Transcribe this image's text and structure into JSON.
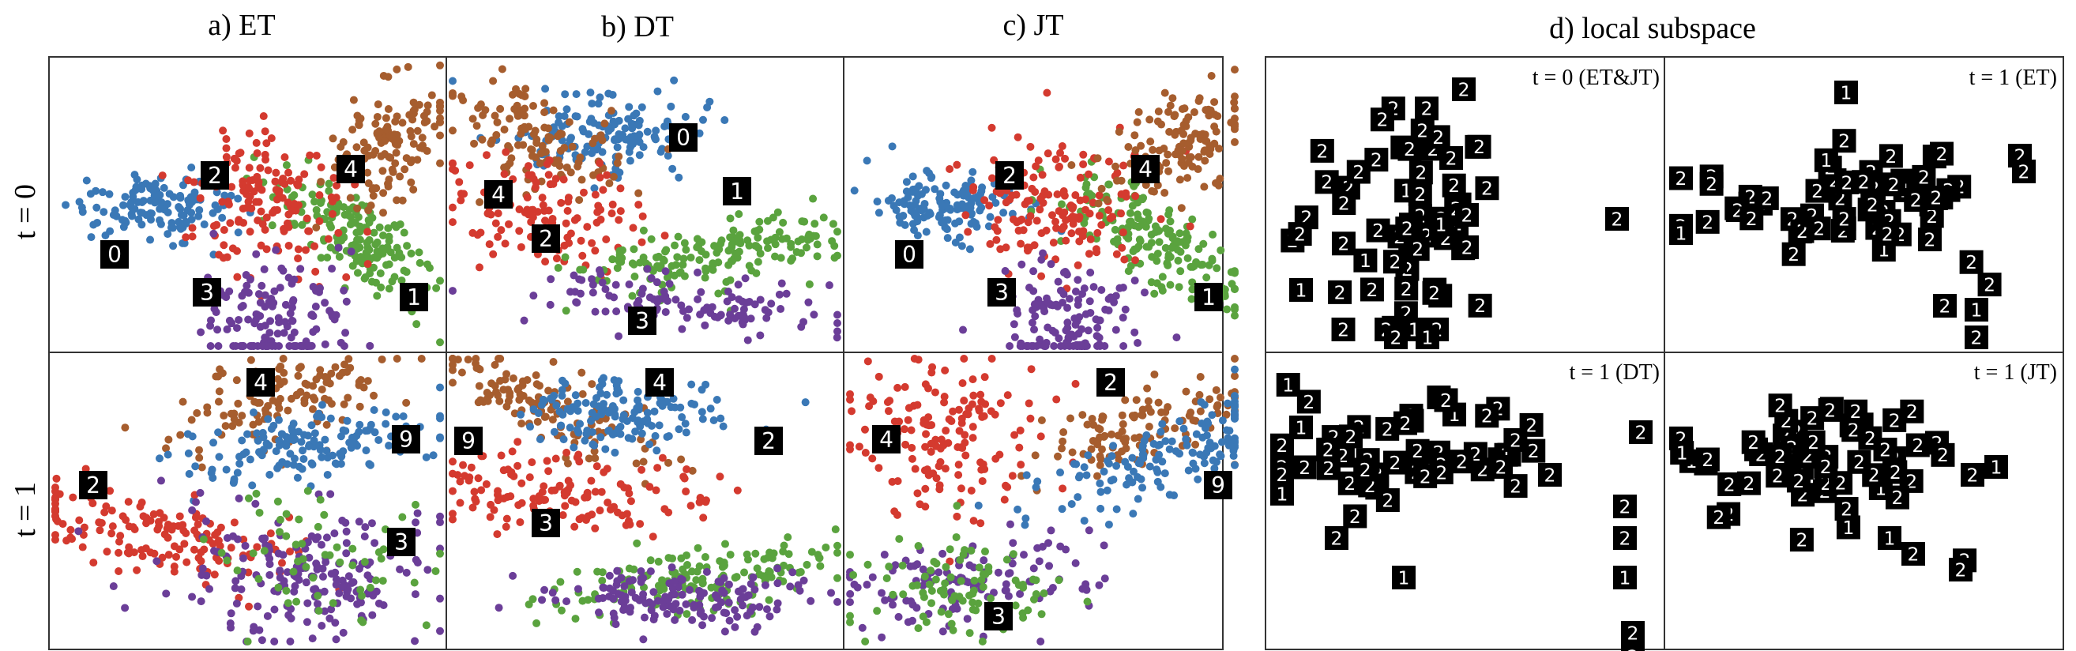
{
  "column_titles": [
    "a) ET",
    "b) DT",
    "c) JT"
  ],
  "local_title": "d) local subspace",
  "row_labels": [
    "t = 0",
    "t = 1"
  ],
  "colors": {
    "digit_0": "#3a78b6",
    "digit_1": "#5aa33e",
    "digit_2": "#d43a2f",
    "digit_3": "#6b3e98",
    "digit_4": "#a65d2e",
    "digit_9": "#3a78b6",
    "frame": "#333333",
    "digit_tile": "#000000",
    "digit_stroke": "#ffffff"
  },
  "scatter_panels": [
    {
      "clusters": [
        {
          "digit": "0",
          "n": 130,
          "color": "digit_0"
        },
        {
          "digit": "1",
          "n": 170,
          "color": "digit_1"
        },
        {
          "digit": "2",
          "n": 150,
          "color": "digit_2"
        },
        {
          "digit": "3",
          "n": 140,
          "color": "digit_3"
        },
        {
          "digit": "4",
          "n": 130,
          "color": "digit_4"
        }
      ],
      "labels": [
        "2",
        "4",
        "0",
        "3",
        "1"
      ]
    },
    {
      "clusters": [
        {
          "digit": "0",
          "n": 150,
          "color": "digit_0"
        },
        {
          "digit": "4",
          "n": 120,
          "color": "digit_4"
        },
        {
          "digit": "2",
          "n": 120,
          "color": "digit_2"
        },
        {
          "digit": "1",
          "n": 170,
          "color": "digit_1"
        },
        {
          "digit": "3",
          "n": 120,
          "color": "digit_3"
        }
      ],
      "labels": [
        "0",
        "4",
        "1",
        "2",
        "3"
      ]
    },
    {
      "clusters": [
        {
          "digit": "0",
          "n": 130,
          "color": "digit_0"
        },
        {
          "digit": "1",
          "n": 170,
          "color": "digit_1"
        },
        {
          "digit": "2",
          "n": 150,
          "color": "digit_2"
        },
        {
          "digit": "3",
          "n": 140,
          "color": "digit_3"
        },
        {
          "digit": "4",
          "n": 130,
          "color": "digit_4"
        }
      ],
      "labels": [
        "2",
        "4",
        "0",
        "3",
        "1"
      ]
    },
    {
      "clusters": [
        {
          "digit": "4",
          "n": 120,
          "color": "digit_4"
        },
        {
          "digit": "9",
          "n": 150,
          "color": "digit_9"
        },
        {
          "digit": "2",
          "n": 150,
          "color": "digit_2"
        },
        {
          "digit": "3",
          "n": 200,
          "color": "digit_3"
        },
        {
          "digit": "1",
          "n": 60,
          "color": "digit_1"
        }
      ],
      "labels": [
        "4",
        "9",
        "2",
        "3"
      ]
    },
    {
      "clusters": [
        {
          "digit": "4",
          "n": 120,
          "color": "digit_4"
        },
        {
          "digit": "9",
          "n": 140,
          "color": "digit_9"
        },
        {
          "digit": "2",
          "n": 140,
          "color": "digit_2"
        },
        {
          "digit": "1",
          "n": 160,
          "color": "digit_1"
        },
        {
          "digit": "3",
          "n": 150,
          "color": "digit_3"
        }
      ],
      "labels": [
        "4",
        "9",
        "2",
        "3"
      ]
    },
    {
      "clusters": [
        {
          "digit": "2",
          "n": 150,
          "color": "digit_2"
        },
        {
          "digit": "4",
          "n": 110,
          "color": "digit_4"
        },
        {
          "digit": "9",
          "n": 140,
          "color": "digit_9"
        },
        {
          "digit": "3",
          "n": 120,
          "color": "digit_3"
        },
        {
          "digit": "1",
          "n": 90,
          "color": "digit_1"
        }
      ],
      "labels": [
        "2",
        "4",
        "9",
        "3"
      ]
    }
  ],
  "local_panels": [
    {
      "label": "t = 0 (ET&JT)",
      "tiles": 60
    },
    {
      "label": "t = 1 (ET)",
      "tiles": 58
    },
    {
      "label": "t = 1 (DT)",
      "tiles": 52
    },
    {
      "label": "t = 1 (JT)",
      "tiles": 56
    }
  ]
}
